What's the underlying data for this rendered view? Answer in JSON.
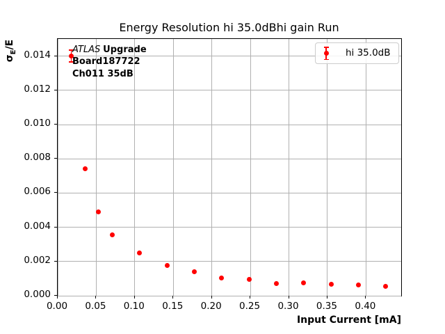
{
  "figure": {
    "annotation": {
      "line1_italic": "ATLAS",
      "line1_bold": "Upgrade",
      "line2": "Board187722",
      "line3": "Ch011 35dB"
    },
    "legend": {
      "label": "hi 35.0dB"
    },
    "colors": {
      "marker": "#ff0000",
      "grid": "#b0b0b0",
      "frame": "#000000",
      "background": "#ffffff",
      "legend_border": "#cccccc"
    }
  },
  "chart_data": {
    "type": "scatter",
    "title": "Energy Resolution hi 35.0dBhi gain Run",
    "xlabel": "Input Current [mA]",
    "ylabel": "σE/E",
    "ylabel_parts": {
      "sigma": "σ",
      "sub": "E",
      "rest": "/E"
    },
    "xlim": [
      0,
      0.4457
    ],
    "ylim": [
      0,
      0.015
    ],
    "xticks": [
      "0.00",
      "0.05",
      "0.10",
      "0.15",
      "0.20",
      "0.25",
      "0.30",
      "0.35",
      "0.40"
    ],
    "yticks": [
      "0.000",
      "0.002",
      "0.004",
      "0.006",
      "0.008",
      "0.010",
      "0.012",
      "0.014"
    ],
    "grid": true,
    "legend_position": "upper right",
    "series": [
      {
        "name": "hi 35.0dB",
        "color": "#ff0000",
        "marker": "circle-with-errorbar",
        "x": [
          0.0177,
          0.0355,
          0.0532,
          0.071,
          0.1064,
          0.1419,
          0.1774,
          0.2129,
          0.2484,
          0.2838,
          0.3193,
          0.3548,
          0.3903,
          0.4258
        ],
        "y": [
          0.014,
          0.00743,
          0.0049,
          0.00357,
          0.00251,
          0.00177,
          0.00142,
          0.00103,
          0.00094,
          0.00071,
          0.00074,
          0.00068,
          0.00062,
          0.00055
        ],
        "yerr": [
          0.00035,
          0,
          0,
          0,
          0,
          0,
          0,
          0,
          0,
          0,
          0,
          0,
          0,
          0
        ]
      }
    ]
  }
}
